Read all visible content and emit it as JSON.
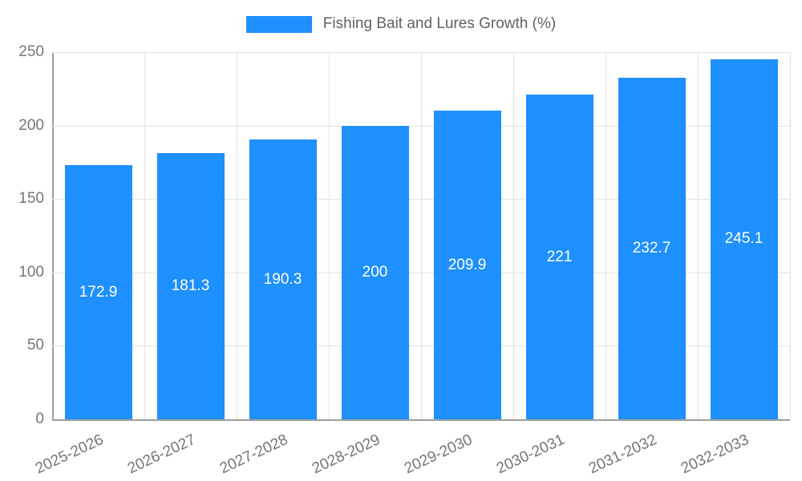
{
  "legend": {
    "title": "Fishing Bait and Lures Growth (%)"
  },
  "colors": {
    "accent": "#1E90FF",
    "bar_label": "#ffffff",
    "axis_text": "#757575",
    "grid": "#e2e2e2",
    "axis_line": "#9e9e9e"
  },
  "chart_data": {
    "type": "bar",
    "title": "Fishing Bait and Lures Growth (%)",
    "categories": [
      "2025-2026",
      "2026-2027",
      "2027-2028",
      "2028-2029",
      "2029-2030",
      "2030-2031",
      "2031-2032",
      "2032-2033"
    ],
    "values": [
      172.9,
      181.3,
      190.3,
      200,
      209.9,
      221,
      232.7,
      245.1
    ],
    "value_labels": [
      "172.9",
      "181.3",
      "190.3",
      "200",
      "209.9",
      "221",
      "232.7",
      "245.1"
    ],
    "xlabel": "",
    "ylabel": "",
    "ylim": [
      0,
      250
    ],
    "yticks": [
      0,
      50,
      100,
      150,
      200,
      250
    ],
    "grid": true,
    "legend_position": "top-center",
    "bar_color": "#1E90FF",
    "value_label_position": "inside-center"
  }
}
